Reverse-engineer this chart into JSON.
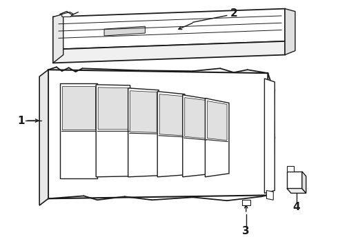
{
  "bg_color": "#ffffff",
  "line_color": "#1a1a1a",
  "line_width": 1.0,
  "fig_width": 4.9,
  "fig_height": 3.6,
  "dpi": 100,
  "label_fontsize": 11
}
